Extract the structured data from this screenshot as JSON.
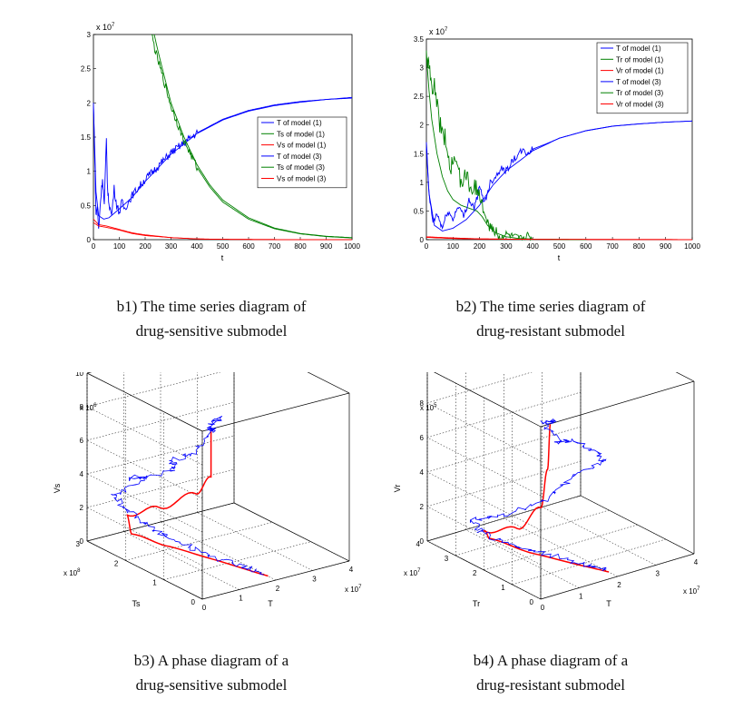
{
  "colors": {
    "T": "#0000ff",
    "Ts": "#008000",
    "Vs": "#ff0000",
    "Tr": "#008000",
    "Vr": "#ff0000"
  },
  "chart_data": [
    {
      "id": "b1",
      "type": "line",
      "title": "",
      "xlabel": "t",
      "ylabel": "",
      "exponent_label": "x 10^7",
      "exp_base": "x 10",
      "exp_power": "7",
      "xlim": [
        0,
        1000
      ],
      "ylim": [
        0,
        3
      ],
      "xticks": [
        0,
        100,
        200,
        300,
        400,
        500,
        600,
        700,
        800,
        900,
        1000
      ],
      "yticks": [
        0,
        0.5,
        1,
        1.5,
        2,
        2.5,
        3
      ],
      "legend_position": "right",
      "legend": [
        "T of model (1)",
        "Ts of model (1)",
        "Vs of model (1)",
        "T of model (3)",
        "Ts of model (3)",
        "Vs of model (3)"
      ],
      "series": [
        {
          "name": "T of model (1)",
          "x": [
            0,
            10,
            20,
            40,
            60,
            100,
            150,
            200,
            300,
            400,
            500,
            600,
            700,
            800,
            900,
            1000
          ],
          "values": [
            1.95,
            0.7,
            0.35,
            0.3,
            0.32,
            0.45,
            0.62,
            0.85,
            1.25,
            1.55,
            1.75,
            1.88,
            1.96,
            2.01,
            2.05,
            2.08
          ]
        },
        {
          "name": "Ts of model (1)",
          "x": [
            235,
            250,
            300,
            350,
            400,
            450,
            500,
            600,
            700,
            800,
            900,
            1000
          ],
          "values": [
            3.0,
            2.75,
            2.0,
            1.5,
            1.1,
            0.8,
            0.58,
            0.32,
            0.17,
            0.09,
            0.05,
            0.03
          ]
        },
        {
          "name": "Vs of model (1)",
          "x": [
            0,
            20,
            50,
            100,
            150,
            200,
            300,
            400,
            500,
            700,
            1000
          ],
          "values": [
            0.3,
            0.22,
            0.2,
            0.15,
            0.1,
            0.07,
            0.03,
            0.01,
            0.005,
            0.002,
            0.001
          ]
        },
        {
          "name": "T of model (3)",
          "x": [
            0,
            5,
            10,
            15,
            20,
            28,
            35,
            42,
            50,
            55,
            60,
            70,
            80,
            90,
            100,
            110,
            120,
            150,
            200,
            300,
            400,
            500,
            600,
            700,
            800,
            900,
            1000
          ],
          "values": [
            2.0,
            1.2,
            0.35,
            0.5,
            0.15,
            0.6,
            0.9,
            0.5,
            1.45,
            0.7,
            0.55,
            0.35,
            0.75,
            0.5,
            0.4,
            0.55,
            0.45,
            0.65,
            0.88,
            1.27,
            1.56,
            1.76,
            1.89,
            1.97,
            2.02,
            2.05,
            2.07
          ]
        },
        {
          "name": "Ts of model (3)",
          "x": [
            225,
            240,
            300,
            350,
            400,
            450,
            500,
            600,
            700,
            800,
            900,
            1000
          ],
          "values": [
            3.0,
            2.75,
            1.95,
            1.45,
            1.06,
            0.77,
            0.55,
            0.3,
            0.16,
            0.085,
            0.045,
            0.025
          ]
        },
        {
          "name": "Vs of model (3)",
          "x": [
            0,
            20,
            50,
            100,
            150,
            200,
            300,
            400,
            500,
            700,
            1000
          ],
          "values": [
            0.25,
            0.2,
            0.18,
            0.14,
            0.09,
            0.06,
            0.03,
            0.012,
            0.005,
            0.002,
            0.001
          ]
        }
      ]
    },
    {
      "id": "b2",
      "type": "line",
      "title": "",
      "xlabel": "t",
      "ylabel": "",
      "exponent_label": "x 10^7",
      "exp_base": "x 10",
      "exp_power": "7",
      "xlim": [
        0,
        1000
      ],
      "ylim": [
        0,
        3.5
      ],
      "xticks": [
        0,
        100,
        200,
        300,
        400,
        500,
        600,
        700,
        800,
        900,
        1000
      ],
      "yticks": [
        0,
        0.5,
        1,
        1.5,
        2,
        2.5,
        3,
        3.5
      ],
      "legend_position": "top-right",
      "legend": [
        "T of model (1)",
        "Tr of model (1)",
        "Vr of model (1)",
        "T of model (3)",
        "Tr of model (3)",
        "Vr of model (3)"
      ],
      "series": [
        {
          "name": "T of model (1)",
          "x": [
            0,
            10,
            30,
            60,
            100,
            150,
            200,
            250,
            300,
            400,
            500,
            600,
            700,
            800,
            900,
            1000
          ],
          "values": [
            1.6,
            0.8,
            0.25,
            0.15,
            0.2,
            0.35,
            0.6,
            0.95,
            1.2,
            1.55,
            1.77,
            1.9,
            1.98,
            2.02,
            2.05,
            2.07
          ]
        },
        {
          "name": "Tr of model (1)",
          "x": [
            0,
            10,
            20,
            40,
            60,
            80,
            100,
            130,
            160,
            190,
            210,
            230,
            260,
            300,
            350,
            400,
            500,
            600
          ],
          "values": [
            3.2,
            2.6,
            2.1,
            1.5,
            1.1,
            0.85,
            0.7,
            0.6,
            0.55,
            0.5,
            0.4,
            0.25,
            0.12,
            0.05,
            0.02,
            0.01,
            0.003,
            0.001
          ]
        },
        {
          "name": "Vr of model (1)",
          "x": [
            0,
            50,
            100,
            200,
            400,
            1000
          ],
          "values": [
            0.04,
            0.03,
            0.02,
            0.01,
            0.005,
            0.002
          ]
        },
        {
          "name": "T of model (3)",
          "x": [
            0,
            8,
            15,
            25,
            40,
            60,
            80,
            100,
            120,
            140,
            160,
            180,
            200,
            220,
            240,
            260,
            280,
            300,
            320,
            340,
            360,
            380,
            400,
            450,
            500,
            600,
            700,
            800,
            900,
            1000
          ],
          "values": [
            1.7,
            0.9,
            0.6,
            0.3,
            0.45,
            0.2,
            0.5,
            0.35,
            0.6,
            0.4,
            0.7,
            0.55,
            0.9,
            0.65,
            1.0,
            1.1,
            1.25,
            1.2,
            1.35,
            1.45,
            1.55,
            1.5,
            1.58,
            1.67,
            1.77,
            1.9,
            1.98,
            2.02,
            2.05,
            2.07
          ]
        },
        {
          "name": "Tr of model (3)",
          "x": [
            0,
            5,
            10,
            20,
            30,
            50,
            70,
            90,
            110,
            130,
            150,
            170,
            190,
            210,
            225,
            240,
            260,
            280,
            300,
            330,
            360,
            380,
            400,
            450,
            500,
            600
          ],
          "values": [
            3.3,
            3.0,
            3.1,
            2.6,
            2.7,
            2.0,
            1.8,
            1.3,
            1.4,
            1.0,
            1.15,
            0.8,
            0.95,
            0.6,
            0.35,
            0.2,
            0.15,
            0.05,
            0.1,
            0.05,
            0.02,
            0.08,
            0.01,
            0.01,
            0.005,
            0.002
          ]
        },
        {
          "name": "Vr of model (3)",
          "x": [
            0,
            50,
            100,
            200,
            400,
            1000
          ],
          "values": [
            0.05,
            0.04,
            0.03,
            0.015,
            0.006,
            0.002
          ]
        }
      ]
    },
    {
      "id": "b3",
      "type": "line",
      "projection": "3d",
      "title": "",
      "xlabel": "T",
      "ylabel": "Ts",
      "zlabel": "Vs",
      "x_exponent": "x 10^7",
      "y_exponent": "x 10^8",
      "z_exponent": "x 10^6",
      "x_exp_base": "x 10",
      "x_exp_power": "7",
      "y_exp_base": "x 10",
      "y_exp_power": "8",
      "z_exp_base": "x 10",
      "z_exp_power": "6",
      "xlim": [
        0,
        4
      ],
      "ylim": [
        0,
        3
      ],
      "zlim": [
        0,
        10
      ],
      "xticks": [
        0,
        1,
        2,
        3,
        4
      ],
      "yticks": [
        0,
        1,
        2,
        3
      ],
      "zticks": [
        0,
        2,
        4,
        6,
        8,
        10
      ],
      "series": [
        {
          "name": "model (1)",
          "color": "red",
          "points": [
            [
              0.3,
              0.06,
              9.8
            ],
            [
              0.32,
              0.08,
              7.0
            ],
            [
              0.35,
              0.5,
              5.5
            ],
            [
              0.4,
              1.5,
              3.5
            ],
            [
              0.45,
              2.4,
              2.0
            ],
            [
              0.7,
              2.5,
              0.6
            ],
            [
              1.2,
              2.0,
              0.15
            ],
            [
              1.6,
              1.2,
              0.05
            ],
            [
              2.0,
              0.2,
              0.01
            ]
          ]
        },
        {
          "name": "model (3)",
          "color": "blue",
          "points": [
            [
              0.5,
              0.2,
              9.5
            ],
            [
              0.3,
              0.1,
              9.9
            ],
            [
              0.8,
              0.3,
              10.0
            ],
            [
              0.4,
              0.5,
              8.0
            ],
            [
              0.2,
              1.0,
              7.0
            ],
            [
              0.8,
              1.5,
              5.5
            ],
            [
              0.3,
              2.2,
              4.5
            ],
            [
              0.9,
              2.3,
              4.0
            ],
            [
              0.3,
              2.6,
              3.0
            ],
            [
              0.6,
              2.5,
              2.0
            ],
            [
              0.9,
              2.3,
              1.2
            ],
            [
              1.2,
              1.9,
              0.7
            ],
            [
              1.5,
              1.5,
              0.3
            ],
            [
              1.8,
              0.8,
              0.1
            ],
            [
              2.0,
              0.3,
              0.02
            ]
          ]
        }
      ]
    },
    {
      "id": "b4",
      "type": "line",
      "projection": "3d",
      "title": "",
      "xlabel": "T",
      "ylabel": "Tr",
      "zlabel": "Vr",
      "x_exponent": "x 10^7",
      "y_exponent": "x 10^7",
      "z_exponent": "x 10^5",
      "x_exp_base": "x 10",
      "x_exp_power": "7",
      "y_exp_base": "x 10",
      "y_exp_power": "7",
      "z_exp_base": "x 10",
      "z_exp_power": "5",
      "xlim": [
        0,
        4
      ],
      "ylim": [
        0,
        4
      ],
      "zlim": [
        0,
        10
      ],
      "xticks": [
        0,
        1,
        2,
        3,
        4
      ],
      "yticks": [
        0,
        1,
        2,
        3,
        4
      ],
      "zticks": [
        0,
        2,
        4,
        6,
        8,
        10
      ],
      "series": [
        {
          "name": "model (1)",
          "color": "red",
          "points": [
            [
              0.4,
              0.2,
              9.7
            ],
            [
              0.4,
              0.3,
              7.0
            ],
            [
              0.45,
              0.6,
              4.5
            ],
            [
              0.5,
              1.5,
              2.5
            ],
            [
              0.6,
              2.8,
              1.2
            ],
            [
              0.9,
              3.0,
              0.4
            ],
            [
              1.3,
              2.0,
              0.1
            ],
            [
              1.8,
              0.8,
              0.02
            ],
            [
              2.0,
              0.3,
              0.01
            ]
          ]
        },
        {
          "name": "model (3)",
          "color": "blue",
          "points": [
            [
              0.6,
              0.3,
              9.7
            ],
            [
              0.3,
              0.3,
              9.8
            ],
            [
              1.2,
              1.0,
              7.5
            ],
            [
              2.0,
              1.6,
              6.5
            ],
            [
              2.6,
              1.5,
              5.5
            ],
            [
              3.0,
              1.8,
              4.5
            ],
            [
              2.4,
              2.0,
              4.0
            ],
            [
              1.8,
              2.2,
              2.8
            ],
            [
              1.0,
              2.6,
              2.0
            ],
            [
              0.4,
              3.0,
              1.8
            ],
            [
              0.6,
              2.9,
              1.0
            ],
            [
              1.0,
              2.4,
              0.5
            ],
            [
              1.4,
              1.8,
              0.2
            ],
            [
              1.8,
              1.0,
              0.05
            ],
            [
              2.0,
              0.4,
              0.01
            ]
          ]
        }
      ]
    }
  ],
  "captions": {
    "b1": {
      "line1": "b1) The time series diagram of",
      "line2": "drug-sensitive submodel"
    },
    "b2": {
      "line1": "b2) The time series diagram of",
      "line2": "drug-resistant submodel"
    },
    "b3": {
      "line1": "b3) A phase diagram of a",
      "line2": "drug-sensitive submodel"
    },
    "b4": {
      "line1": "b4) A phase diagram of a",
      "line2": "drug-resistant submodel"
    }
  }
}
